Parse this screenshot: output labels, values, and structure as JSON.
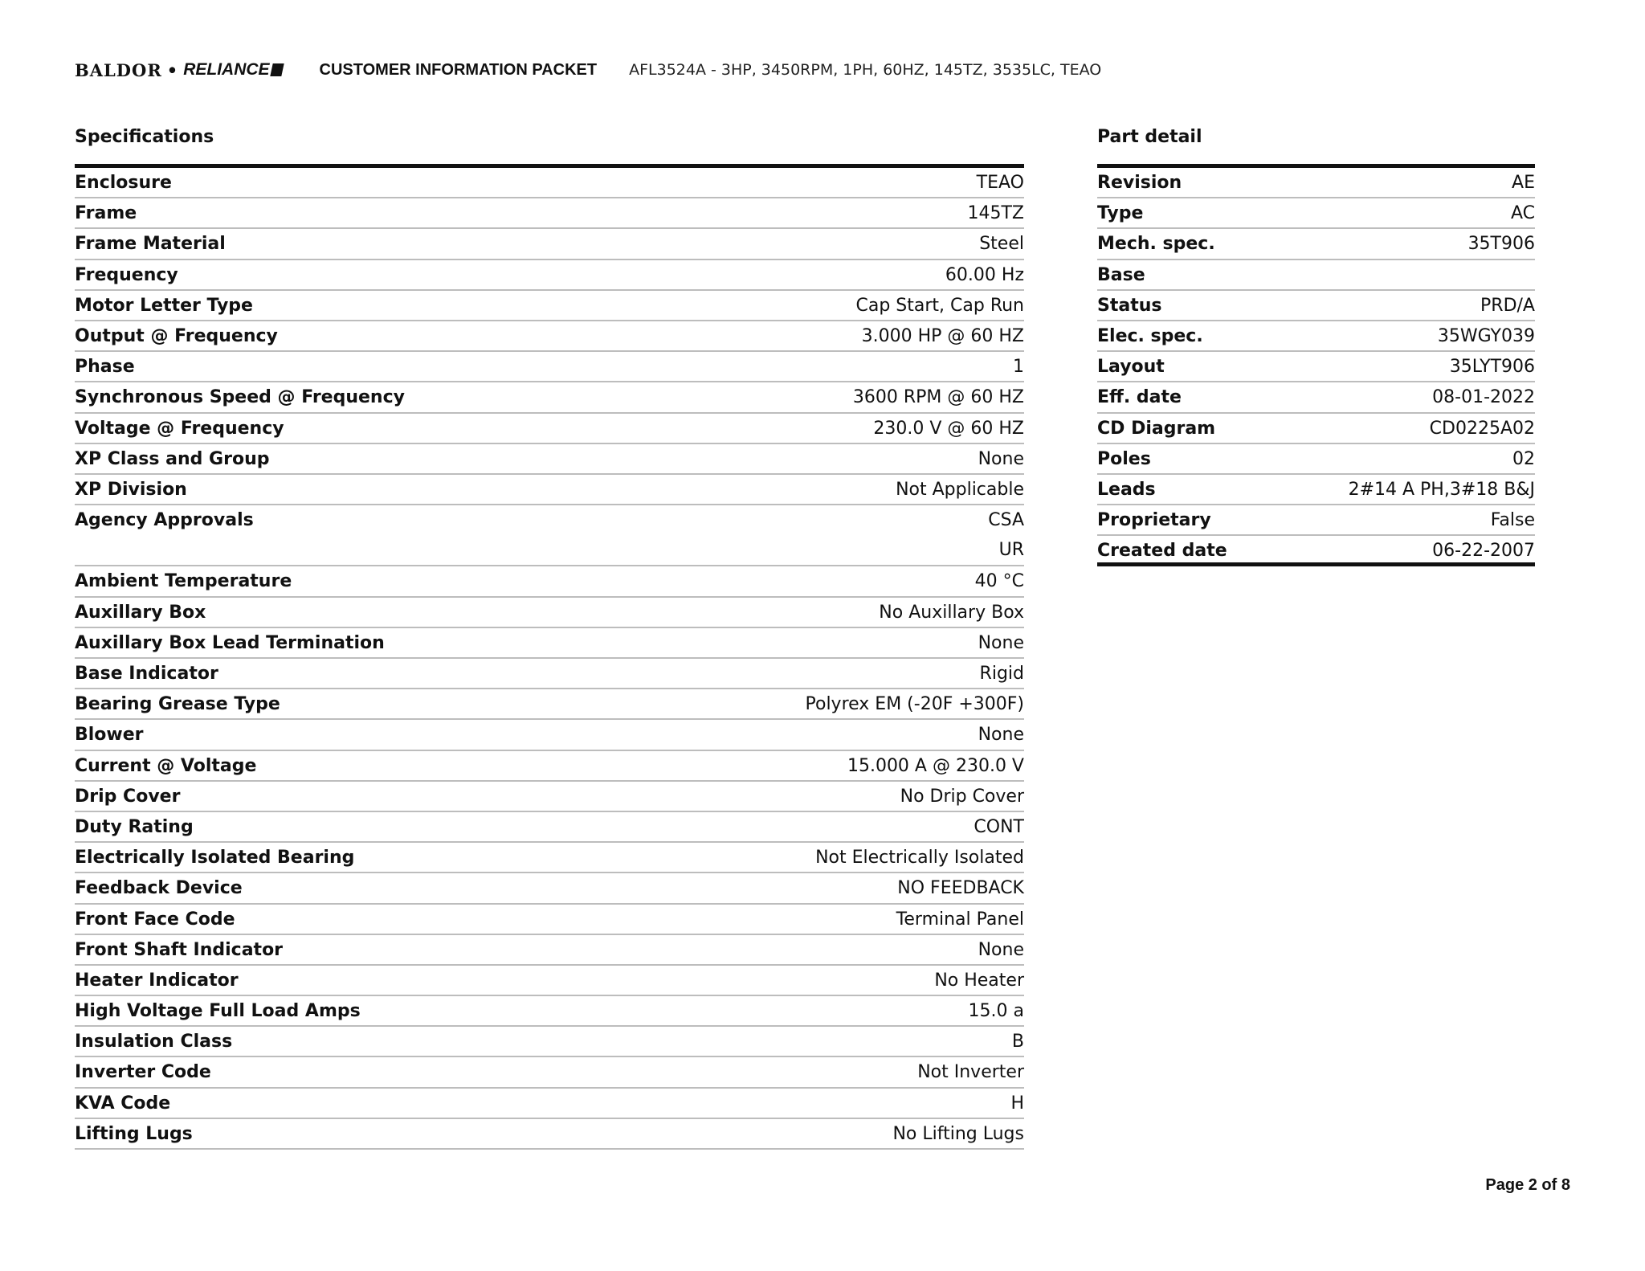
{
  "header": {
    "logo_left": "BALDOR",
    "logo_sep": "•",
    "logo_right": "RELIANCE",
    "packet_title": "CUSTOMER INFORMATION PACKET",
    "product_description": "AFL3524A - 3HP, 3450RPM, 1PH, 60HZ, 145TZ, 3535LC, TEAO"
  },
  "specifications": {
    "title": "Specifications",
    "rows": [
      {
        "label": "Enclosure",
        "values": [
          "TEAO"
        ]
      },
      {
        "label": "Frame",
        "values": [
          "145TZ"
        ]
      },
      {
        "label": "Frame Material",
        "values": [
          "Steel"
        ]
      },
      {
        "label": "Frequency",
        "values": [
          "60.00 Hz"
        ]
      },
      {
        "label": "Motor Letter Type",
        "values": [
          "Cap Start, Cap Run"
        ]
      },
      {
        "label": "Output @ Frequency",
        "values": [
          "3.000 HP @ 60 HZ"
        ]
      },
      {
        "label": "Phase",
        "values": [
          "1"
        ]
      },
      {
        "label": "Synchronous Speed @ Frequency",
        "values": [
          "3600 RPM @ 60 HZ"
        ]
      },
      {
        "label": "Voltage @ Frequency",
        "values": [
          "230.0 V @ 60 HZ"
        ]
      },
      {
        "label": "XP Class and Group",
        "values": [
          "None"
        ]
      },
      {
        "label": "XP Division",
        "values": [
          "Not Applicable"
        ]
      },
      {
        "label": "Agency Approvals",
        "values": [
          "CSA",
          "UR"
        ]
      },
      {
        "label": "Ambient Temperature",
        "values": [
          "40 °C"
        ]
      },
      {
        "label": "Auxillary Box",
        "values": [
          "No Auxillary Box"
        ]
      },
      {
        "label": "Auxillary Box Lead Termination",
        "values": [
          "None"
        ]
      },
      {
        "label": "Base Indicator",
        "values": [
          "Rigid"
        ]
      },
      {
        "label": "Bearing Grease Type",
        "values": [
          "Polyrex EM (-20F +300F)"
        ]
      },
      {
        "label": "Blower",
        "values": [
          "None"
        ]
      },
      {
        "label": "Current @ Voltage",
        "values": [
          "15.000 A @ 230.0 V"
        ]
      },
      {
        "label": "Drip Cover",
        "values": [
          "No Drip Cover"
        ]
      },
      {
        "label": "Duty Rating",
        "values": [
          "CONT"
        ]
      },
      {
        "label": "Electrically Isolated Bearing",
        "values": [
          "Not Electrically Isolated"
        ]
      },
      {
        "label": "Feedback Device",
        "values": [
          "NO FEEDBACK"
        ]
      },
      {
        "label": "Front Face Code",
        "values": [
          "Terminal Panel"
        ]
      },
      {
        "label": "Front Shaft Indicator",
        "values": [
          "None"
        ]
      },
      {
        "label": "Heater Indicator",
        "values": [
          "No Heater"
        ]
      },
      {
        "label": "High Voltage Full Load Amps",
        "values": [
          "15.0 a"
        ]
      },
      {
        "label": "Insulation Class",
        "values": [
          "B"
        ]
      },
      {
        "label": "Inverter Code",
        "values": [
          "Not Inverter"
        ]
      },
      {
        "label": "KVA Code",
        "values": [
          "H"
        ]
      },
      {
        "label": "Lifting Lugs",
        "values": [
          "No Lifting Lugs"
        ]
      }
    ]
  },
  "part_detail": {
    "title": "Part detail",
    "rows": [
      {
        "label": "Revision",
        "values": [
          "AE"
        ]
      },
      {
        "label": "Type",
        "values": [
          "AC"
        ]
      },
      {
        "label": "Mech. spec.",
        "values": [
          "35T906"
        ]
      },
      {
        "label": "Base",
        "values": [
          ""
        ]
      },
      {
        "label": "Status",
        "values": [
          "PRD/A"
        ]
      },
      {
        "label": "Elec. spec.",
        "values": [
          "35WGY039"
        ]
      },
      {
        "label": "Layout",
        "values": [
          "35LYT906"
        ]
      },
      {
        "label": "Eff. date",
        "values": [
          "08-01-2022"
        ]
      },
      {
        "label": "CD Diagram",
        "values": [
          "CD0225A02"
        ]
      },
      {
        "label": "Poles",
        "values": [
          "02"
        ]
      },
      {
        "label": "Leads",
        "values": [
          "2#14 A PH,3#18 B&J"
        ]
      },
      {
        "label": "Proprietary",
        "values": [
          "False"
        ]
      },
      {
        "label": "Created date",
        "values": [
          "06-22-2007"
        ]
      }
    ]
  },
  "footer": {
    "page_indicator": "Page 2 of 8"
  }
}
